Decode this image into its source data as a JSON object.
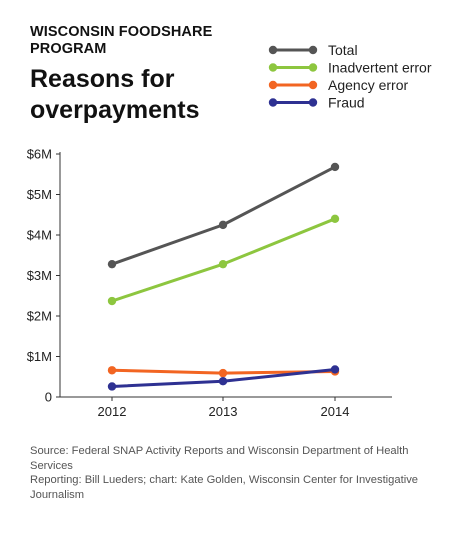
{
  "header": {
    "kicker": "WISCONSIN FOODSHARE PROGRAM",
    "title": "Reasons for overpayments"
  },
  "chart_data": {
    "type": "line",
    "x": [
      2012,
      2013,
      2014
    ],
    "ylim": [
      0,
      6
    ],
    "y_ticks": [
      0,
      1,
      2,
      3,
      4,
      5,
      6
    ],
    "y_tick_labels": [
      "0",
      "$1M",
      "$2M",
      "$3M",
      "$4M",
      "$5M",
      "$6M"
    ],
    "x_tick_labels": [
      "2012",
      "2013",
      "2014"
    ],
    "grid": false,
    "legend_position": "top-right",
    "series": [
      {
        "name": "Total",
        "color": "#555555",
        "values": [
          3.28,
          4.25,
          5.68
        ]
      },
      {
        "name": "Inadvertent error",
        "color": "#8dc63f",
        "values": [
          2.37,
          3.28,
          4.4
        ]
      },
      {
        "name": "Agency error",
        "color": "#f26522",
        "values": [
          0.66,
          0.59,
          0.63
        ]
      },
      {
        "name": "Fraud",
        "color": "#2e3192",
        "values": [
          0.26,
          0.39,
          0.68
        ]
      }
    ]
  },
  "footer": {
    "source": "Source: Federal SNAP Activity Reports and Wisconsin Department of Health Services",
    "credit": "Reporting: Bill Lueders; chart: Kate Golden, Wisconsin Center for Investigative Journalism"
  }
}
